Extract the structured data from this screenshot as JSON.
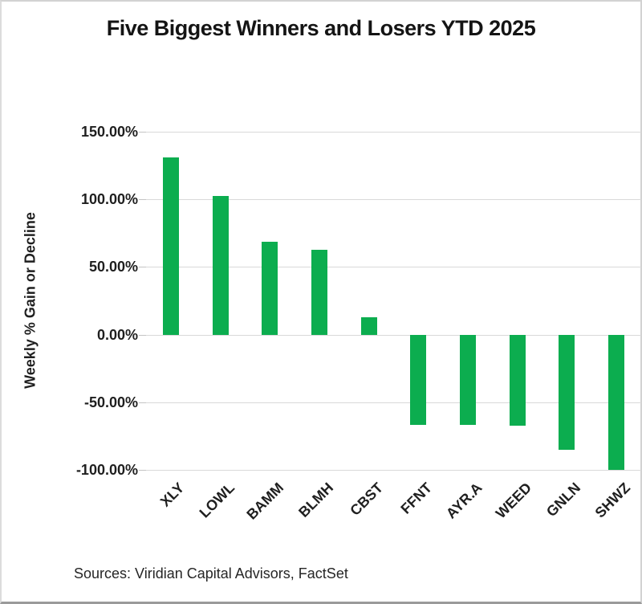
{
  "page": {
    "title": "Five Biggest Winners and Losers YTD 2025",
    "source_note": "Sources: Viridian Capital Advisors, FactSet"
  },
  "chart_data": {
    "type": "bar",
    "title": "Five Biggest Winners and Losers YTD 2025",
    "xlabel": "",
    "ylabel": "Weekly % Gain or Decline",
    "categories": [
      "XLY",
      "LOWL",
      "BAMM",
      "BLMH",
      "CBST",
      "FFNT",
      "AYR.A",
      "WEED",
      "GNLN",
      "SHWZ"
    ],
    "values": [
      131,
      102.5,
      68.5,
      62.5,
      13,
      -66.5,
      -67,
      -67.5,
      -85,
      -100
    ],
    "value_unit": "percent",
    "ylim": [
      -100,
      150
    ],
    "ytick_values": [
      150,
      100,
      50,
      0,
      -50,
      -100
    ],
    "ytick_labels": [
      "150.00%",
      "100.00%",
      "50.00%",
      "0.00%",
      "-50.00%",
      "-100.00%"
    ],
    "grid": true,
    "legend_position": "none",
    "bar_color": "#0cad4f",
    "annotations": [
      "Sources: Viridian Capital Advisors, FactSet"
    ]
  }
}
